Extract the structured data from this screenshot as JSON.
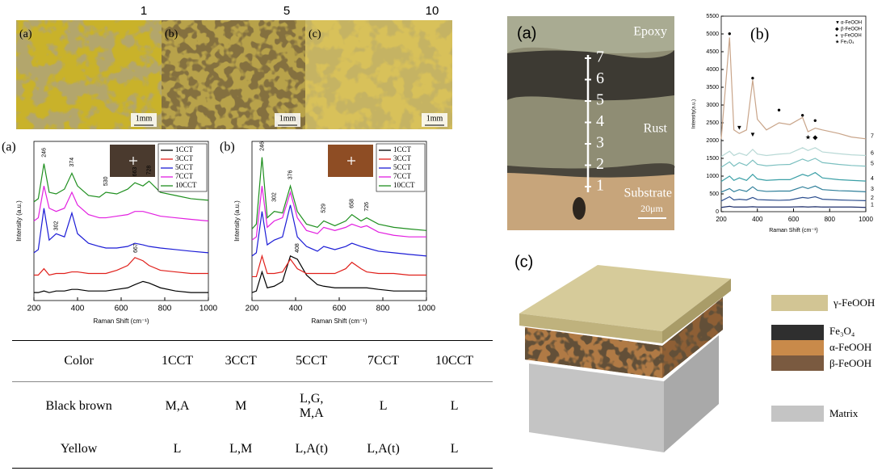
{
  "micrographs": {
    "numbers": [
      "1",
      "5",
      "10"
    ],
    "panels": [
      "(a)",
      "(b)",
      "(c)"
    ],
    "scale_bar": "1mm"
  },
  "chart_data": [
    {
      "type": "line",
      "panel_label": "(a)",
      "x_label": "Raman Shift (cm⁻¹)",
      "y_label": "Intensity (a.u.)",
      "x": [
        200,
        220,
        246,
        270,
        302,
        340,
        374,
        400,
        450,
        500,
        530,
        580,
        630,
        663,
        700,
        728,
        780,
        850,
        920,
        1000
      ],
      "xlim": [
        200,
        1000
      ],
      "xticks": [
        200,
        400,
        600,
        800,
        1000
      ],
      "ylim": [
        0,
        100
      ],
      "legend": "top-right",
      "series": [
        {
          "name": "1CCT",
          "color": "#000000",
          "values": [
            5,
            5,
            6,
            5,
            6,
            6,
            7,
            7,
            6,
            6,
            6,
            7,
            8,
            10,
            12,
            11,
            8,
            6,
            5,
            5
          ]
        },
        {
          "name": "3CCT",
          "color": "#e0201b",
          "values": [
            16,
            16,
            20,
            16,
            17,
            17,
            18,
            18,
            17,
            17,
            17,
            19,
            22,
            27,
            25,
            22,
            19,
            18,
            17,
            17
          ]
        },
        {
          "name": "5CCT",
          "color": "#1c1cd6",
          "values": [
            30,
            32,
            58,
            38,
            42,
            40,
            55,
            42,
            36,
            34,
            33,
            33,
            34,
            36,
            35,
            34,
            33,
            32,
            31,
            30
          ]
        },
        {
          "name": "7CCT",
          "color": "#e21fe0",
          "values": [
            50,
            52,
            72,
            58,
            56,
            58,
            68,
            60,
            54,
            52,
            52,
            53,
            54,
            56,
            56,
            55,
            53,
            52,
            51,
            50
          ]
        },
        {
          "name": "10CCT",
          "color": "#1f8f1f",
          "values": [
            62,
            64,
            86,
            68,
            67,
            70,
            80,
            72,
            66,
            65,
            68,
            67,
            70,
            74,
            72,
            75,
            68,
            66,
            64,
            63
          ]
        }
      ],
      "annotations": [
        {
          "text": "246",
          "x": 246,
          "y": 90
        },
        {
          "text": "374",
          "x": 374,
          "y": 84
        },
        {
          "text": "530",
          "x": 530,
          "y": 72
        },
        {
          "text": "663",
          "x": 663,
          "y": 78
        },
        {
          "text": "728",
          "x": 728,
          "y": 79
        },
        {
          "text": "302",
          "x": 302,
          "y": 44
        },
        {
          "text": "667",
          "x": 667,
          "y": 30
        }
      ]
    },
    {
      "type": "line",
      "panel_label": "(b)",
      "x_label": "Raman Shift (cm⁻¹)",
      "y_label": "Intensity (a.u.)",
      "x": [
        200,
        220,
        246,
        270,
        302,
        340,
        376,
        408,
        450,
        500,
        529,
        580,
        630,
        658,
        700,
        726,
        780,
        850,
        920,
        1000
      ],
      "xlim": [
        200,
        1000
      ],
      "xticks": [
        200,
        400,
        600,
        800,
        1000
      ],
      "ylim": [
        0,
        100
      ],
      "legend": "top-right",
      "series": [
        {
          "name": "1CCT",
          "color": "#000000",
          "values": [
            5,
            6,
            18,
            8,
            9,
            12,
            28,
            26,
            16,
            10,
            9,
            8,
            8,
            8,
            8,
            8,
            7,
            6,
            6,
            6
          ]
        },
        {
          "name": "3CCT",
          "color": "#e0201b",
          "values": [
            15,
            15,
            28,
            17,
            17,
            18,
            26,
            20,
            17,
            17,
            17,
            17,
            20,
            24,
            20,
            18,
            17,
            17,
            16,
            16
          ]
        },
        {
          "name": "5CCT",
          "color": "#1c1cd6",
          "values": [
            28,
            30,
            56,
            35,
            38,
            40,
            60,
            40,
            34,
            31,
            34,
            32,
            34,
            36,
            34,
            33,
            31,
            30,
            29,
            28
          ]
        },
        {
          "name": "7CCT",
          "color": "#e21fe0",
          "values": [
            38,
            40,
            72,
            46,
            50,
            52,
            68,
            52,
            44,
            42,
            46,
            44,
            46,
            48,
            46,
            47,
            43,
            41,
            40,
            40
          ]
        },
        {
          "name": "10CCT",
          "color": "#1f8f1f",
          "values": [
            45,
            48,
            90,
            52,
            56,
            55,
            72,
            56,
            48,
            46,
            50,
            47,
            50,
            54,
            50,
            52,
            48,
            46,
            45,
            44
          ]
        }
      ],
      "annotations": [
        {
          "text": "246",
          "x": 246,
          "y": 94
        },
        {
          "text": "302",
          "x": 302,
          "y": 62
        },
        {
          "text": "376",
          "x": 376,
          "y": 76
        },
        {
          "text": "529",
          "x": 529,
          "y": 55
        },
        {
          "text": "658",
          "x": 658,
          "y": 58
        },
        {
          "text": "726",
          "x": 726,
          "y": 56
        },
        {
          "text": "408",
          "x": 408,
          "y": 30
        }
      ]
    },
    {
      "type": "line",
      "panel_label": "(b)",
      "x_label": "Raman Shift (cm⁻¹)",
      "y_label": "Intensity(a.u.)",
      "x": [
        200,
        246,
        270,
        300,
        340,
        374,
        400,
        450,
        520,
        580,
        650,
        680,
        720,
        760,
        850,
        920,
        1000
      ],
      "xlim": [
        200,
        1000
      ],
      "xticks": [
        200,
        400,
        600,
        800,
        1000
      ],
      "ylim": [
        0,
        5500
      ],
      "yticks": [
        0,
        500,
        1000,
        1500,
        2000,
        2500,
        3000,
        3500,
        4000,
        4500,
        5000,
        5500
      ],
      "legend": "line-end",
      "series": [
        {
          "name": "1",
          "color": "#1f2f6b",
          "values": [
            120,
            150,
            130,
            130,
            130,
            140,
            130,
            130,
            130,
            130,
            140,
            130,
            140,
            130,
            130,
            130,
            120
          ]
        },
        {
          "name": "2",
          "color": "#2d4f8f",
          "values": [
            300,
            420,
            330,
            350,
            330,
            400,
            340,
            330,
            320,
            330,
            400,
            380,
            420,
            350,
            330,
            320,
            310
          ]
        },
        {
          "name": "3",
          "color": "#2f7f9a",
          "values": [
            550,
            650,
            560,
            620,
            570,
            700,
            600,
            570,
            580,
            580,
            700,
            650,
            720,
            620,
            590,
            580,
            560
          ]
        },
        {
          "name": "4",
          "color": "#3a9fa6",
          "values": [
            850,
            1000,
            880,
            950,
            880,
            1050,
            920,
            880,
            900,
            900,
            1050,
            1000,
            1100,
            950,
            900,
            880,
            860
          ]
        },
        {
          "name": "5",
          "color": "#7cc0c0",
          "values": [
            1250,
            1400,
            1280,
            1380,
            1300,
            1450,
            1330,
            1290,
            1320,
            1330,
            1480,
            1420,
            1500,
            1380,
            1330,
            1300,
            1280
          ]
        },
        {
          "name": "6",
          "color": "#b9d9d6",
          "values": [
            1550,
            1700,
            1580,
            1650,
            1580,
            1750,
            1620,
            1580,
            1620,
            1640,
            1800,
            1720,
            1800,
            1680,
            1630,
            1600,
            1580
          ]
        },
        {
          "name": "7",
          "color": "#c9a58a",
          "values": [
            2050,
            4900,
            2300,
            2200,
            2300,
            3700,
            2600,
            2300,
            2500,
            2450,
            2650,
            2250,
            2350,
            2300,
            2200,
            2100,
            2050
          ]
        }
      ],
      "marker_legend": [
        {
          "symbol": "▼",
          "label": "α-FeOOH"
        },
        {
          "symbol": "◆",
          "label": "β-FeOOH"
        },
        {
          "symbol": "●",
          "label": "γ-FeOOH"
        },
        {
          "symbol": "★",
          "label": "Fe₃O₄"
        }
      ],
      "annotations": [
        {
          "text": "●",
          "x": 246,
          "y": 5000
        },
        {
          "text": "●",
          "x": 374,
          "y": 3750
        },
        {
          "text": "●",
          "x": 520,
          "y": 2850
        },
        {
          "text": "●",
          "x": 650,
          "y": 2700
        },
        {
          "text": "●",
          "x": 720,
          "y": 2550
        },
        {
          "text": "▼",
          "x": 300,
          "y": 2350
        },
        {
          "text": "▼",
          "x": 374,
          "y": 2150
        },
        {
          "text": "★",
          "x": 680,
          "y": 2080
        },
        {
          "text": "◆",
          "x": 720,
          "y": 2080
        }
      ]
    }
  ],
  "cross_section": {
    "panel": "(a)",
    "epoxy": "Epoxy",
    "rust": "Rust",
    "substrate": "Substrate",
    "scale_bar": "20μm",
    "points": [
      "7",
      "6",
      "5",
      "4",
      "3",
      "2",
      "1"
    ]
  },
  "schematic": {
    "panel": "(c)",
    "legend": [
      "γ-FeOOH",
      "Fe₃O₄",
      "α-FeOOH",
      "β-FeOOH",
      "Matrix"
    ]
  },
  "table": {
    "header": [
      "Color",
      "1CCT",
      "3CCT",
      "5CCT",
      "7CCT",
      "10CCT"
    ],
    "rows": [
      [
        "Black brown",
        "M,A",
        "M",
        "L,G, M,A",
        "L",
        "L"
      ],
      [
        "Yellow",
        "L",
        "L,M",
        "L,A(t)",
        "L,A(t)",
        "L"
      ]
    ]
  }
}
